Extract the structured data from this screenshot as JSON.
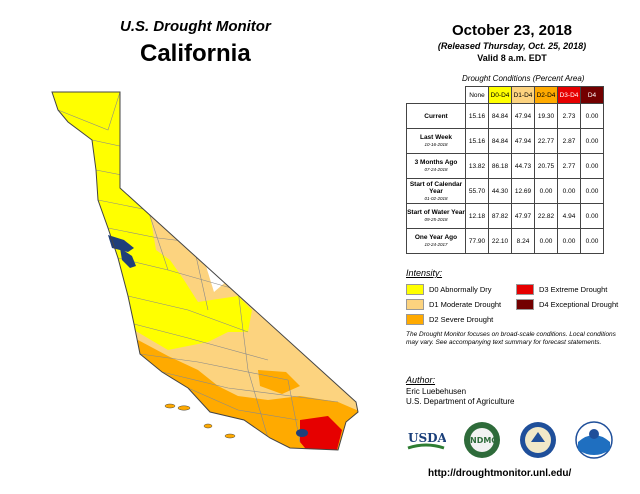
{
  "header": {
    "line1": "U.S. Drought Monitor",
    "line2": "California"
  },
  "date": {
    "main": "October 23, 2018",
    "released": "(Released Thursday, Oct. 25, 2018)",
    "valid": "Valid 8 a.m. EDT"
  },
  "conditions": {
    "caption": "Drought Conditions (Percent Area)",
    "columns": [
      {
        "label": "None",
        "color": "#ffffff"
      },
      {
        "label": "D0-D4",
        "color": "#ffff00"
      },
      {
        "label": "D1-D4",
        "color": "#fcd37f"
      },
      {
        "label": "D2-D4",
        "color": "#ffaa00"
      },
      {
        "label": "D3-D4",
        "color": "#e60000"
      },
      {
        "label": "D4",
        "color": "#730000"
      }
    ],
    "rows": [
      {
        "label": "Current",
        "date": "",
        "values": [
          "15.16",
          "84.84",
          "47.94",
          "19.30",
          "2.73",
          "0.00"
        ]
      },
      {
        "label": "Last Week",
        "date": "10-16-2018",
        "values": [
          "15.16",
          "84.84",
          "47.94",
          "22.77",
          "2.87",
          "0.00"
        ]
      },
      {
        "label": "3 Months Ago",
        "date": "07-24-2018",
        "values": [
          "13.82",
          "86.18",
          "44.73",
          "20.75",
          "2.77",
          "0.00"
        ]
      },
      {
        "label": "Start of Calendar Year",
        "date": "01-02-2018",
        "values": [
          "55.70",
          "44.30",
          "12.69",
          "0.00",
          "0.00",
          "0.00"
        ]
      },
      {
        "label": "Start of Water Year",
        "date": "09-25-2018",
        "values": [
          "12.18",
          "87.82",
          "47.97",
          "22.82",
          "4.94",
          "0.00"
        ]
      },
      {
        "label": "One Year Ago",
        "date": "10-24-2017",
        "values": [
          "77.90",
          "22.10",
          "8.24",
          "0.00",
          "0.00",
          "0.00"
        ]
      }
    ]
  },
  "intensity": {
    "heading": "Intensity:",
    "items": [
      {
        "label": "D0 Abnormally Dry",
        "color": "#ffff00"
      },
      {
        "label": "D1 Moderate Drought",
        "color": "#fcd37f"
      },
      {
        "label": "D2 Severe Drought",
        "color": "#ffaa00"
      },
      {
        "label": "D3 Extreme Drought",
        "color": "#e60000"
      },
      {
        "label": "D4 Exceptional Drought",
        "color": "#730000"
      }
    ]
  },
  "note": "The Drought Monitor focuses on broad-scale conditions. Local conditions may vary. See accompanying text summary for forecast statements.",
  "author": {
    "heading": "Author:",
    "name": "Eric Luebehusen",
    "org": "U.S. Department of Agriculture"
  },
  "logos": {
    "usda": "USDA",
    "ndmc": "NDMC"
  },
  "url": "http://droughtmonitor.unl.edu/"
}
